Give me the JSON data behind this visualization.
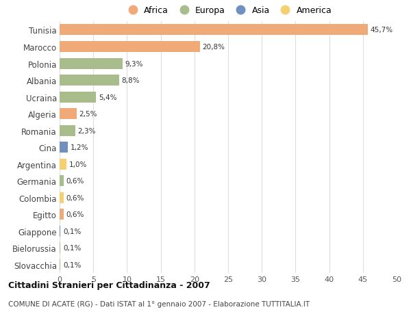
{
  "countries": [
    "Tunisia",
    "Marocco",
    "Polonia",
    "Albania",
    "Ucraina",
    "Algeria",
    "Romania",
    "Cina",
    "Argentina",
    "Germania",
    "Colombia",
    "Egitto",
    "Giappone",
    "Bielorussia",
    "Slovacchia"
  ],
  "values": [
    45.7,
    20.8,
    9.3,
    8.8,
    5.4,
    2.5,
    2.3,
    1.2,
    1.0,
    0.6,
    0.6,
    0.6,
    0.1,
    0.1,
    0.1
  ],
  "labels": [
    "45,7%",
    "20,8%",
    "9,3%",
    "8,8%",
    "5,4%",
    "2,5%",
    "2,3%",
    "1,2%",
    "1,0%",
    "0,6%",
    "0,6%",
    "0,6%",
    "0,1%",
    "0,1%",
    "0,1%"
  ],
  "continents": [
    "Africa",
    "Africa",
    "Europa",
    "Europa",
    "Europa",
    "Africa",
    "Europa",
    "Asia",
    "America",
    "Europa",
    "America",
    "Africa",
    "Asia",
    "Europa",
    "Europa"
  ],
  "continent_colors": {
    "Africa": "#F0AA78",
    "Europa": "#A8BC8C",
    "Asia": "#7090C0",
    "America": "#F5D070"
  },
  "legend_order": [
    "Africa",
    "Europa",
    "Asia",
    "America"
  ],
  "title": "Cittadini Stranieri per Cittadinanza - 2007",
  "subtitle": "COMUNE DI ACATE (RG) - Dati ISTAT al 1° gennaio 2007 - Elaborazione TUTTITALIA.IT",
  "xlim": [
    0,
    50
  ],
  "xticks": [
    0,
    5,
    10,
    15,
    20,
    25,
    30,
    35,
    40,
    45,
    50
  ],
  "background_color": "#ffffff",
  "grid_color": "#dddddd",
  "bar_height": 0.65
}
